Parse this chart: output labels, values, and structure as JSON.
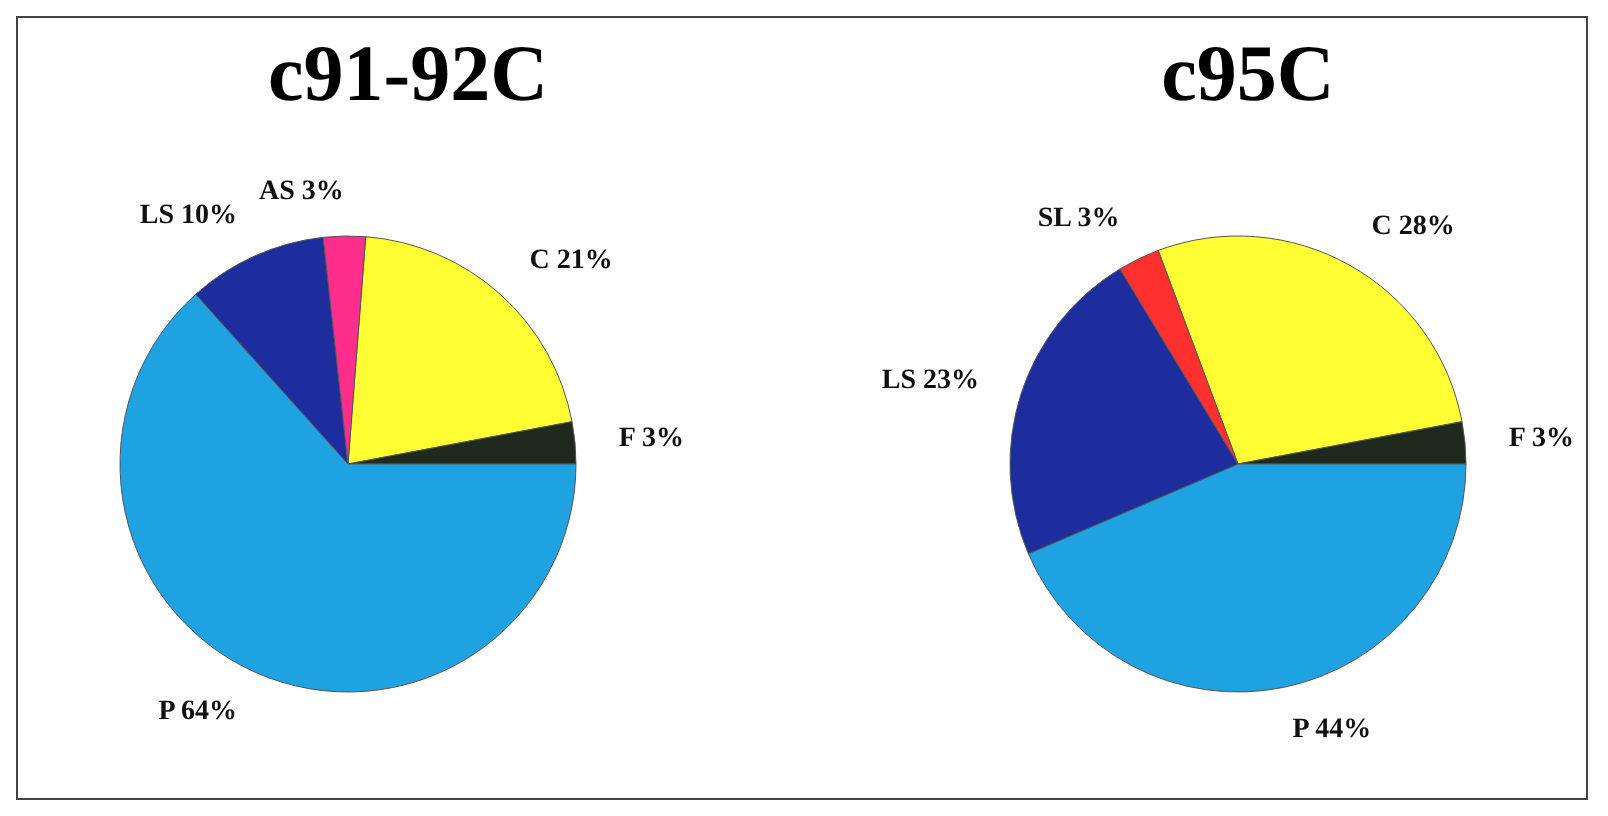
{
  "chart_data": [
    {
      "type": "pie",
      "title": "c91-92C",
      "categories": [
        "C",
        "F",
        "P",
        "LS",
        "AS"
      ],
      "values": [
        21,
        3,
        64,
        10,
        3
      ],
      "value_labels": [
        "21%",
        "3%",
        "64%",
        "10%",
        "3%"
      ],
      "colors": [
        "#ffff33",
        "#1f2a1c",
        "#1ea2e2",
        "#1e2d9e",
        "#ff2d8c"
      ],
      "legend": false
    },
    {
      "type": "pie",
      "title": "c95C",
      "categories": [
        "C",
        "F",
        "P",
        "LS",
        "SL"
      ],
      "values": [
        28,
        3,
        44,
        23,
        3
      ],
      "value_labels": [
        "28%",
        "3%",
        "44%",
        "23%",
        "3%"
      ],
      "colors": [
        "#ffff33",
        "#1f2a1c",
        "#1ea2e2",
        "#1e2d9e",
        "#ff3030"
      ],
      "legend": false
    }
  ]
}
